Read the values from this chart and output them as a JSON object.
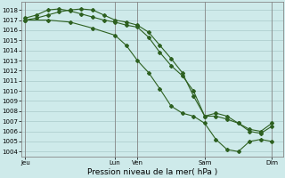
{
  "background_color": "#ceeaea",
  "grid_color": "#aacaca",
  "line_color": "#2d6020",
  "ylim": [
    1003.5,
    1018.8
  ],
  "yticks": [
    1004,
    1005,
    1006,
    1007,
    1008,
    1009,
    1010,
    1011,
    1012,
    1013,
    1014,
    1015,
    1016,
    1017,
    1018
  ],
  "xlabel": "Pression niveau de la mer( hPa )",
  "xtick_labels": [
    "Jeu",
    "Lun",
    "Ven",
    "Sam",
    "Dim"
  ],
  "xtick_positions": [
    0,
    48,
    60,
    96,
    132
  ],
  "xlim": [
    -2,
    138
  ],
  "vline_positions": [
    0,
    48,
    60,
    96,
    132
  ],
  "line1_x": [
    0,
    6,
    12,
    18,
    24,
    30,
    36,
    42,
    48,
    54,
    60,
    66,
    72,
    78,
    84,
    90,
    96,
    102,
    108,
    114,
    120,
    126,
    132
  ],
  "line1_y": [
    1017.2,
    1017.5,
    1018.0,
    1018.1,
    1017.9,
    1017.6,
    1017.3,
    1017.0,
    1016.8,
    1016.5,
    1016.3,
    1015.3,
    1013.8,
    1012.5,
    1011.5,
    1010.0,
    1007.5,
    1007.5,
    1007.2,
    1006.8,
    1006.2,
    1006.0,
    1006.8
  ],
  "line2_x": [
    0,
    6,
    12,
    18,
    24,
    30,
    36,
    42,
    48,
    54,
    60,
    66,
    72,
    78,
    84,
    90,
    96,
    102,
    108,
    114,
    120,
    126,
    132
  ],
  "line2_y": [
    1017.0,
    1017.2,
    1017.5,
    1017.8,
    1018.0,
    1018.1,
    1018.0,
    1017.5,
    1017.0,
    1016.8,
    1016.5,
    1015.8,
    1014.5,
    1013.2,
    1011.8,
    1009.5,
    1007.5,
    1007.8,
    1007.5,
    1006.8,
    1006.0,
    1005.8,
    1006.5
  ],
  "line3_x": [
    0,
    12,
    24,
    36,
    48,
    54,
    60,
    66,
    72,
    78,
    84,
    90,
    96,
    102,
    108,
    114,
    120,
    126,
    132
  ],
  "line3_y": [
    1017.0,
    1017.0,
    1016.8,
    1016.2,
    1015.5,
    1014.5,
    1013.0,
    1011.8,
    1010.2,
    1008.5,
    1007.8,
    1007.5,
    1006.8,
    1005.2,
    1004.2,
    1004.0,
    1005.0,
    1005.2,
    1005.0
  ],
  "marker": "D",
  "markersize": 2.0,
  "linewidth": 0.8,
  "tick_fontsize": 5.0,
  "xlabel_fontsize": 6.5
}
